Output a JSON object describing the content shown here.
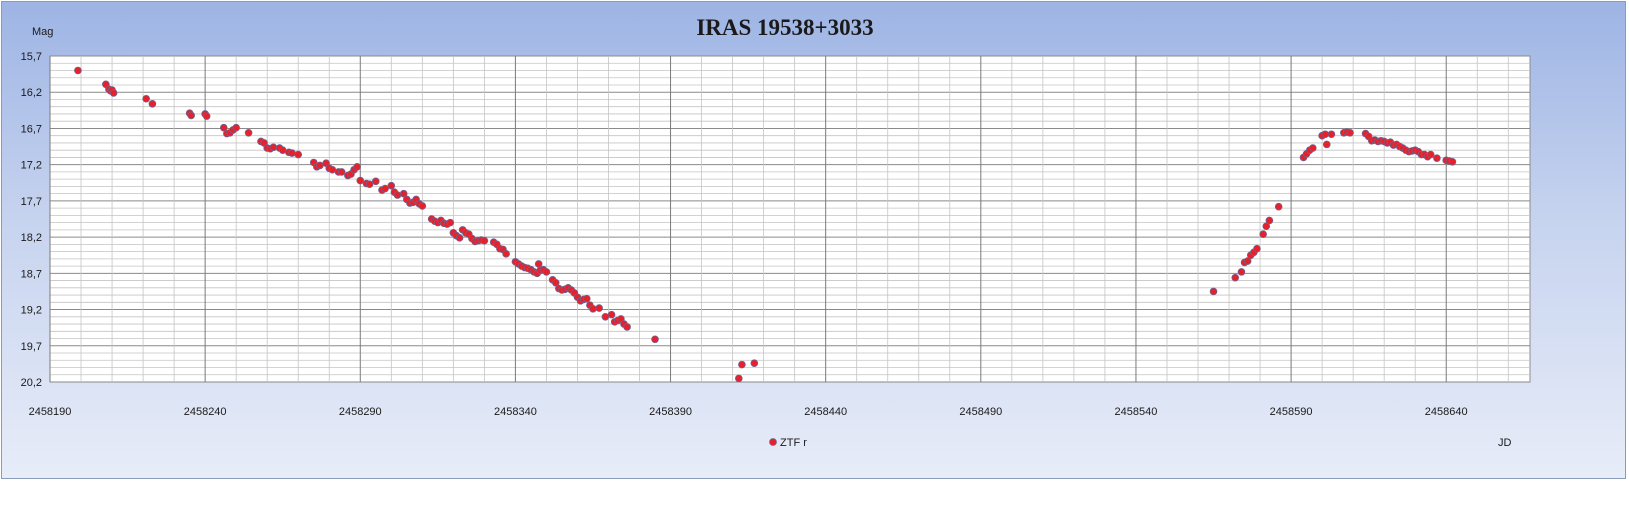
{
  "chart_data": {
    "type": "scatter",
    "title": "IRAS 19538+3033",
    "ylabel": "Mag",
    "xlabel": "JD",
    "y_inverted": true,
    "xlim": [
      2458190,
      2458667
    ],
    "ylim": [
      15.7,
      20.2
    ],
    "x_ticks": [
      "2458190",
      "2458240",
      "2458290",
      "2458340",
      "2458390",
      "2458440",
      "2458490",
      "2458540",
      "2458590",
      "2458640"
    ],
    "y_ticks": [
      "15,7",
      "16,2",
      "16,7",
      "17,2",
      "17,7",
      "18,2",
      "18,7",
      "19,2",
      "19,7",
      "20,2"
    ],
    "grid": true,
    "legend": "bottom-center",
    "series": [
      {
        "name": "ZTF r",
        "color": "#e8202a",
        "points": [
          [
            2458199,
            15.9
          ],
          [
            2458208,
            16.09
          ],
          [
            2458209,
            16.16
          ],
          [
            2458209.5,
            16.18
          ],
          [
            2458210,
            16.17
          ],
          [
            2458210.5,
            16.21
          ],
          [
            2458221,
            16.29
          ],
          [
            2458223,
            16.36
          ],
          [
            2458235,
            16.49
          ],
          [
            2458235.5,
            16.52
          ],
          [
            2458240,
            16.5
          ],
          [
            2458240.5,
            16.53
          ],
          [
            2458246,
            16.69
          ],
          [
            2458247,
            16.77
          ],
          [
            2458248,
            16.76
          ],
          [
            2458249,
            16.72
          ],
          [
            2458250,
            16.69
          ],
          [
            2458254,
            16.76
          ],
          [
            2458258,
            16.88
          ],
          [
            2458259,
            16.9
          ],
          [
            2458260,
            16.97
          ],
          [
            2458261,
            16.98
          ],
          [
            2458262,
            16.96
          ],
          [
            2458264,
            16.97
          ],
          [
            2458265,
            17.0
          ],
          [
            2458267,
            17.03
          ],
          [
            2458268,
            17.04
          ],
          [
            2458270,
            17.06
          ],
          [
            2458275,
            17.17
          ],
          [
            2458276,
            17.23
          ],
          [
            2458277,
            17.21
          ],
          [
            2458279,
            17.18
          ],
          [
            2458280,
            17.25
          ],
          [
            2458281,
            17.27
          ],
          [
            2458283,
            17.3
          ],
          [
            2458284,
            17.3
          ],
          [
            2458286,
            17.35
          ],
          [
            2458287,
            17.33
          ],
          [
            2458288,
            17.27
          ],
          [
            2458289,
            17.23
          ],
          [
            2458290,
            17.42
          ],
          [
            2458292,
            17.46
          ],
          [
            2458293,
            17.47
          ],
          [
            2458295,
            17.43
          ],
          [
            2458297,
            17.55
          ],
          [
            2458298,
            17.53
          ],
          [
            2458300,
            17.49
          ],
          [
            2458301,
            17.58
          ],
          [
            2458302,
            17.62
          ],
          [
            2458304,
            17.6
          ],
          [
            2458305,
            17.68
          ],
          [
            2458306,
            17.73
          ],
          [
            2458307,
            17.72
          ],
          [
            2458308,
            17.68
          ],
          [
            2458309,
            17.74
          ],
          [
            2458310,
            17.77
          ],
          [
            2458313,
            17.95
          ],
          [
            2458314,
            17.98
          ],
          [
            2458315,
            18.0
          ],
          [
            2458316,
            17.97
          ],
          [
            2458317,
            18.01
          ],
          [
            2458318,
            18.02
          ],
          [
            2458319,
            18.0
          ],
          [
            2458320,
            18.14
          ],
          [
            2458321,
            18.18
          ],
          [
            2458322,
            18.21
          ],
          [
            2458323,
            18.1
          ],
          [
            2458324,
            18.14
          ],
          [
            2458325,
            18.16
          ],
          [
            2458326,
            18.22
          ],
          [
            2458327,
            18.26
          ],
          [
            2458328,
            18.25
          ],
          [
            2458329,
            18.24
          ],
          [
            2458330,
            18.25
          ],
          [
            2458333,
            18.27
          ],
          [
            2458334,
            18.3
          ],
          [
            2458335,
            18.36
          ],
          [
            2458336,
            18.37
          ],
          [
            2458337,
            18.43
          ],
          [
            2458340,
            18.54
          ],
          [
            2458341,
            18.57
          ],
          [
            2458342,
            18.6
          ],
          [
            2458343,
            18.62
          ],
          [
            2458344,
            18.63
          ],
          [
            2458345,
            18.65
          ],
          [
            2458346,
            18.68
          ],
          [
            2458347,
            18.7
          ],
          [
            2458347.5,
            18.57
          ],
          [
            2458348,
            18.66
          ],
          [
            2458349,
            18.65
          ],
          [
            2458350,
            18.68
          ],
          [
            2458352,
            18.79
          ],
          [
            2458353,
            18.83
          ],
          [
            2458354,
            18.91
          ],
          [
            2458355,
            18.93
          ],
          [
            2458356,
            18.92
          ],
          [
            2458357,
            18.9
          ],
          [
            2458358,
            18.93
          ],
          [
            2458359,
            18.97
          ],
          [
            2458360,
            19.03
          ],
          [
            2458361,
            19.08
          ],
          [
            2458362,
            19.06
          ],
          [
            2458363,
            19.05
          ],
          [
            2458364,
            19.14
          ],
          [
            2458365,
            19.19
          ],
          [
            2458367,
            19.18
          ],
          [
            2458369,
            19.3
          ],
          [
            2458371,
            19.27
          ],
          [
            2458372,
            19.37
          ],
          [
            2458373,
            19.35
          ],
          [
            2458374,
            19.33
          ],
          [
            2458375,
            19.4
          ],
          [
            2458376,
            19.44
          ],
          [
            2458385,
            19.61
          ],
          [
            2458412,
            20.15
          ],
          [
            2458413,
            19.96
          ],
          [
            2458417,
            19.94
          ],
          [
            2458565,
            18.95
          ],
          [
            2458572,
            18.76
          ],
          [
            2458574,
            18.68
          ],
          [
            2458575,
            18.55
          ],
          [
            2458576,
            18.53
          ],
          [
            2458577,
            18.45
          ],
          [
            2458578,
            18.41
          ],
          [
            2458579,
            18.36
          ],
          [
            2458581,
            18.16
          ],
          [
            2458582,
            18.05
          ],
          [
            2458583,
            17.97
          ],
          [
            2458586,
            17.78
          ],
          [
            2458594,
            17.1
          ],
          [
            2458595,
            17.05
          ],
          [
            2458596,
            17.0
          ],
          [
            2458597,
            16.97
          ],
          [
            2458600,
            16.8
          ],
          [
            2458601,
            16.78
          ],
          [
            2458601.5,
            16.92
          ],
          [
            2458603,
            16.78
          ],
          [
            2458607,
            16.76
          ],
          [
            2458608,
            16.75
          ],
          [
            2458609,
            16.76
          ],
          [
            2458614,
            16.77
          ],
          [
            2458615,
            16.81
          ],
          [
            2458616,
            16.87
          ],
          [
            2458617,
            16.86
          ],
          [
            2458618,
            16.88
          ],
          [
            2458619,
            16.87
          ],
          [
            2458620,
            16.88
          ],
          [
            2458621,
            16.9
          ],
          [
            2458622,
            16.89
          ],
          [
            2458623,
            16.93
          ],
          [
            2458624,
            16.92
          ],
          [
            2458625,
            16.95
          ],
          [
            2458626,
            16.97
          ],
          [
            2458627,
            17.0
          ],
          [
            2458628,
            17.02
          ],
          [
            2458629,
            17.01
          ],
          [
            2458630,
            17.0
          ],
          [
            2458631,
            17.02
          ],
          [
            2458632,
            17.06
          ],
          [
            2458633,
            17.06
          ],
          [
            2458634,
            17.09
          ],
          [
            2458635,
            17.06
          ],
          [
            2458637,
            17.11
          ],
          [
            2458640,
            17.14
          ],
          [
            2458641,
            17.15
          ],
          [
            2458642,
            17.16
          ]
        ]
      }
    ]
  }
}
